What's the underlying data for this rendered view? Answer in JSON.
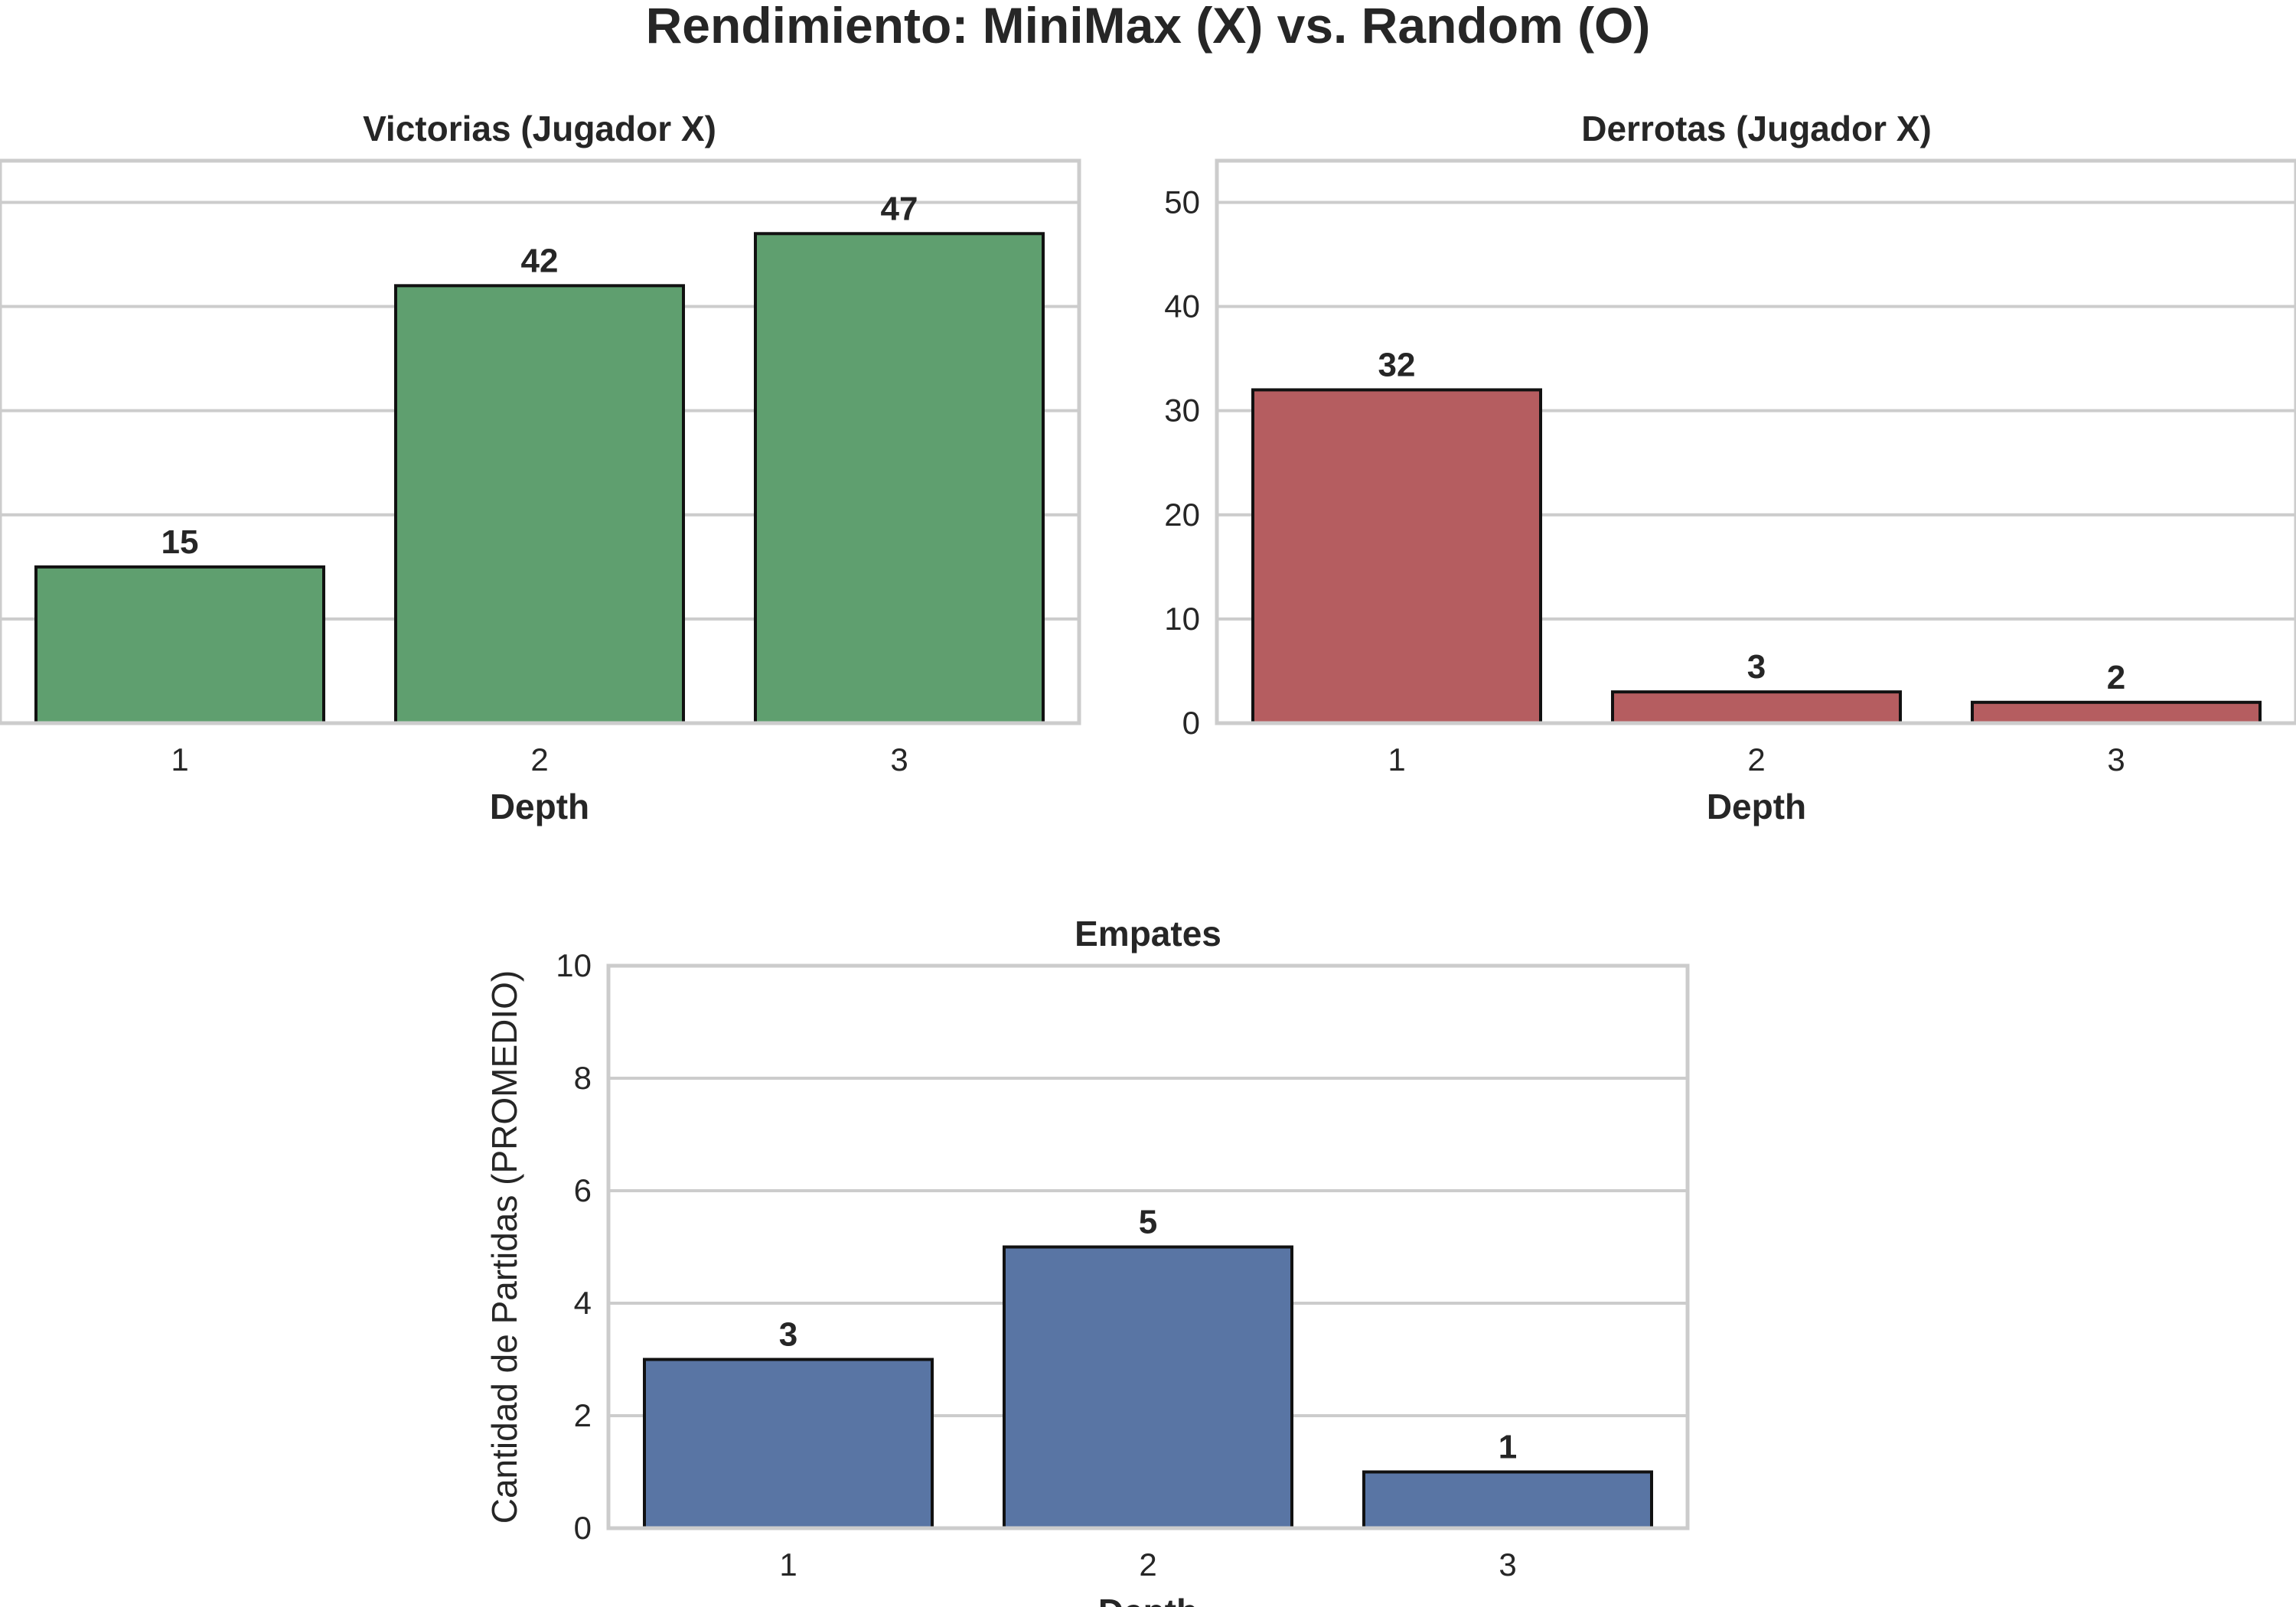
{
  "title": "Rendimiento: MiniMax (X) vs. Random (O)",
  "chart_data": [
    {
      "type": "bar",
      "title": "Victorias (Jugador X)",
      "categories": [
        "1",
        "2",
        "3"
      ],
      "series": [
        {
          "values": [
            15,
            42,
            47
          ]
        }
      ],
      "xlabel": "Depth",
      "ylabel": "",
      "ylim": [
        0,
        54
      ],
      "yticks": [
        0,
        10,
        20,
        30,
        40,
        50
      ],
      "show_ytick_labels": false,
      "grid": true,
      "color": "#5f9f6f"
    },
    {
      "type": "bar",
      "title": "Derrotas (Jugador X)",
      "categories": [
        "1",
        "2",
        "3"
      ],
      "series": [
        {
          "values": [
            32,
            3,
            2
          ]
        }
      ],
      "xlabel": "Depth",
      "ylabel": "",
      "ylim": [
        0,
        54
      ],
      "yticks": [
        0,
        10,
        20,
        30,
        40,
        50
      ],
      "show_ytick_labels": true,
      "grid": true,
      "color": "#b55d60"
    },
    {
      "type": "bar",
      "title": "Empates",
      "categories": [
        "1",
        "2",
        "3"
      ],
      "series": [
        {
          "values": [
            3,
            5,
            1
          ]
        }
      ],
      "xlabel": "Depth",
      "ylabel": "Cantidad de Partidas (PROMEDIO)",
      "ylim": [
        0,
        10
      ],
      "yticks": [
        0,
        2,
        4,
        6,
        8,
        10
      ],
      "show_ytick_labels": true,
      "grid": true,
      "color": "#5975a4"
    }
  ]
}
